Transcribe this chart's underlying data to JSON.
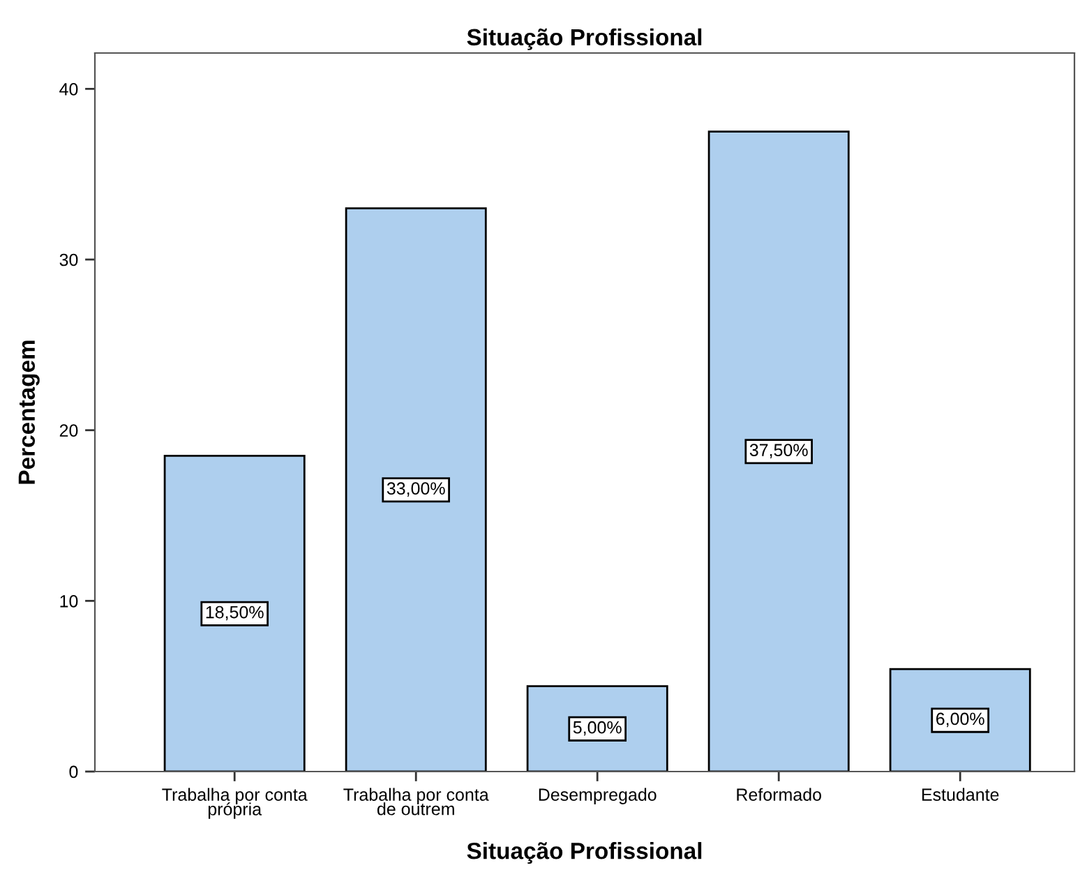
{
  "chart_data": {
    "type": "bar",
    "title": "Situação Profissional",
    "xlabel": "Situação Profissional",
    "ylabel": "Percentagem",
    "categories": [
      "Trabalha por conta\nprópria",
      "Trabalha por conta\nde outrem",
      "Desempregado",
      "Reformado",
      "Estudante"
    ],
    "values": [
      18.5,
      33.0,
      5.0,
      37.5,
      6.0
    ],
    "value_labels": [
      "18,50%",
      "33,00%",
      "5,00%",
      "37,50%",
      "6,00%"
    ],
    "color": "#aecfee",
    "ylim": [
      0,
      42.1
    ],
    "yticks": [
      0,
      10,
      20,
      30,
      40
    ],
    "grid": false
  }
}
